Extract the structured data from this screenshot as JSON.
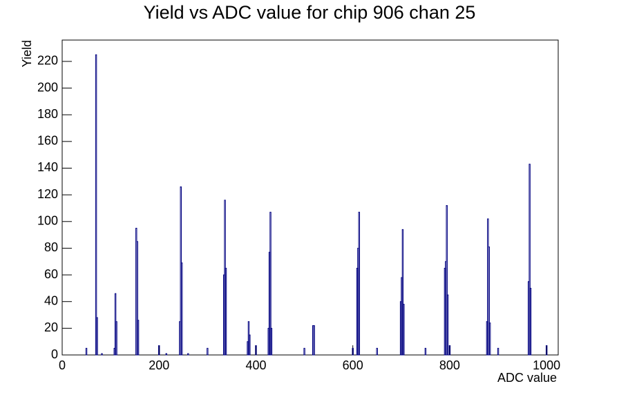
{
  "chart_data": {
    "type": "histogram",
    "title": "Yield vs ADC value for chip 906 chan 25",
    "x_label": "ADC value",
    "y_label": "Yield",
    "color": "#000080",
    "x": [
      50,
      70,
      72,
      82,
      108,
      110,
      112,
      153,
      155,
      157,
      200,
      215,
      243,
      245,
      247,
      260,
      300,
      334,
      336,
      338,
      383,
      385,
      387,
      400,
      426,
      428,
      430,
      432,
      500,
      518,
      520,
      600,
      609,
      611,
      613,
      650,
      699,
      701,
      703,
      705,
      750,
      790,
      792,
      794,
      796,
      800,
      877,
      879,
      881,
      883,
      900,
      963,
      965,
      967,
      1000
    ],
    "values": [
      5,
      225,
      28,
      1,
      5,
      46,
      25,
      95,
      85,
      26,
      7,
      1,
      25,
      126,
      69,
      1,
      5,
      60,
      116,
      65,
      10,
      25,
      15,
      7,
      20,
      77,
      107,
      20,
      5,
      22,
      22,
      5,
      65,
      80,
      107,
      5,
      40,
      58,
      94,
      38,
      5,
      65,
      70,
      112,
      45,
      7,
      25,
      102,
      81,
      24,
      5,
      55,
      143,
      50,
      7
    ],
    "xlim": [
      0,
      1024
    ],
    "ylim": [
      0,
      236
    ],
    "xticks": [
      0,
      200,
      400,
      600,
      800,
      1000
    ],
    "yticks": [
      0,
      20,
      40,
      60,
      80,
      100,
      120,
      140,
      160,
      180,
      200,
      220
    ]
  }
}
